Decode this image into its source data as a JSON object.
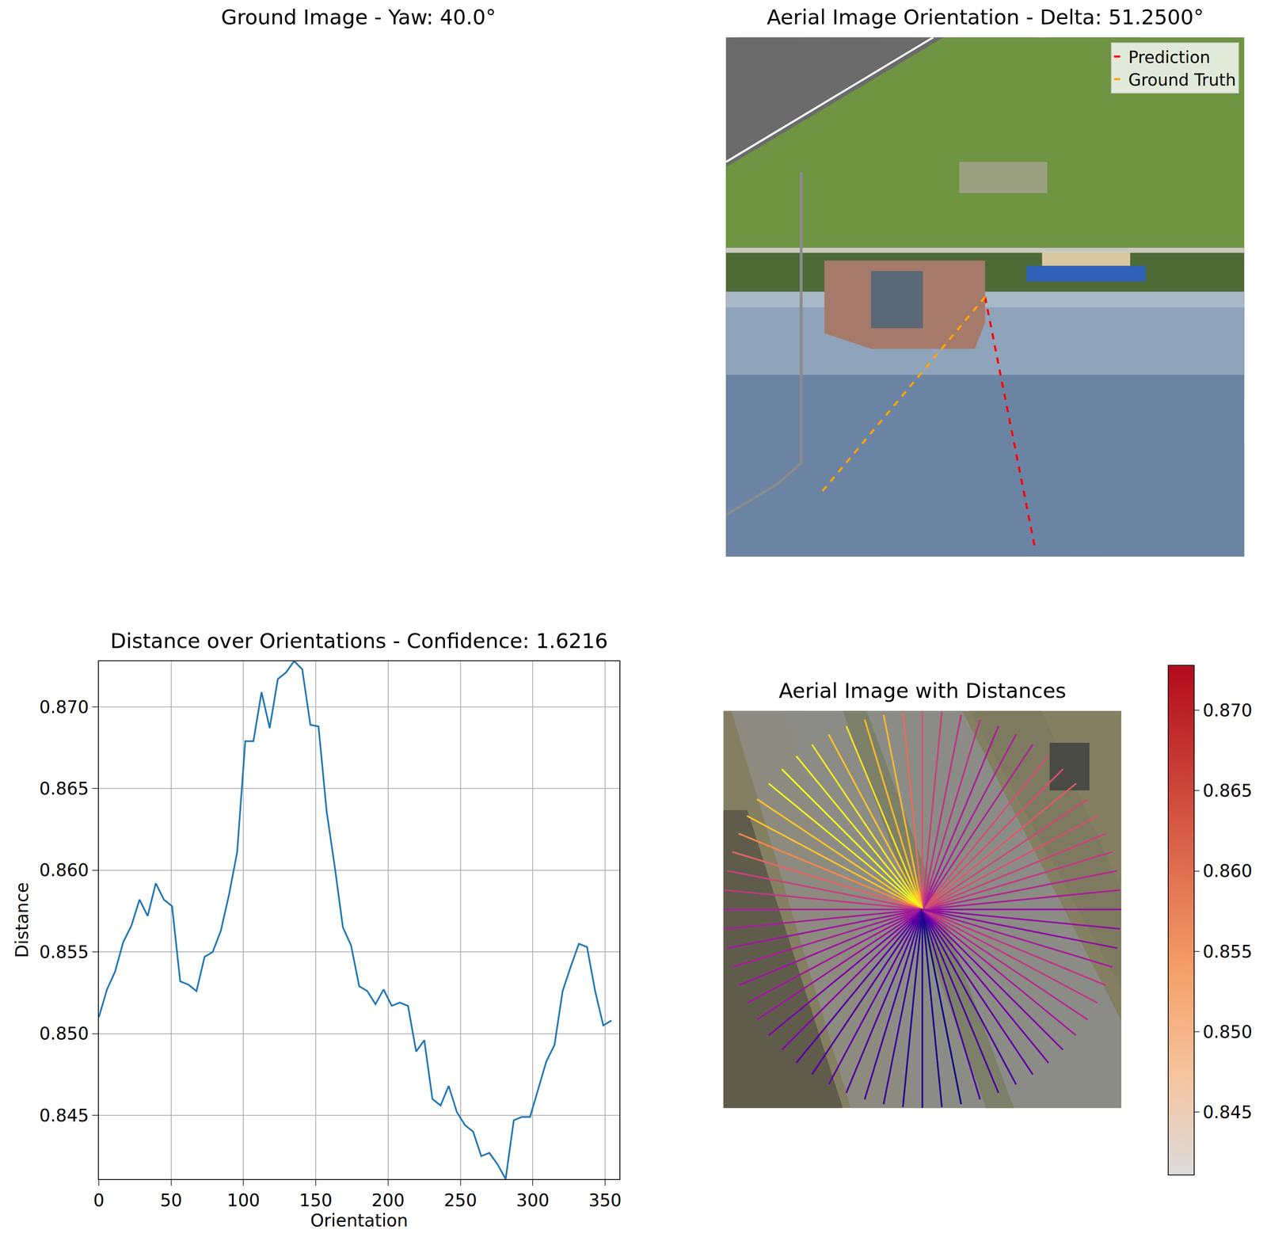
{
  "chart_data": [
    {
      "type": "image",
      "title": "Ground Image - Yaw: 40.0°",
      "tick_labels": false
    },
    {
      "type": "image",
      "title": "Aerial Image Orientation - Delta: 51.2500°",
      "tick_labels": false,
      "xlim": [
        0,
        1
      ],
      "ylim": [
        1,
        0
      ],
      "legend": "upper right",
      "series": [
        {
          "name": "Prediction",
          "color": "red",
          "line_style": "dashed",
          "orientation": 281.25
        },
        {
          "name": "Ground Truth",
          "color": "orange",
          "line_style": "dashed",
          "orientation": 230
        }
      ]
    },
    {
      "type": "line",
      "title": "Distance over Orientations - Confidence: 1.6216",
      "x_label": "Orientation",
      "y_label": "Distance",
      "color": "#1f77b4",
      "grid": true,
      "x": [
        0,
        5.625,
        11.25,
        16.875,
        22.5,
        28.125,
        33.75,
        39.375,
        45,
        50.625,
        56.25,
        61.875,
        67.5,
        73.125,
        78.75,
        84.375,
        90,
        95.625,
        101.25,
        106.875,
        112.5,
        118.125,
        123.75,
        129.375,
        135,
        140.625,
        146.25,
        151.875,
        157.5,
        163.125,
        168.75,
        174.375,
        180,
        185.625,
        191.25,
        196.875,
        202.5,
        208.125,
        213.75,
        219.375,
        225,
        230.625,
        236.25,
        241.875,
        247.5,
        253.125,
        258.75,
        264.375,
        270,
        275.625,
        281.25,
        286.875,
        292.5,
        298.125,
        303.75,
        309.375,
        315,
        320.625,
        326.25,
        331.875,
        337.5,
        343.125,
        348.75,
        354.375
      ],
      "values": [
        0.851,
        0.8527,
        0.8538,
        0.8556,
        0.8566,
        0.8582,
        0.8572,
        0.8592,
        0.8582,
        0.8578,
        0.8532,
        0.853,
        0.8526,
        0.8547,
        0.855,
        0.8563,
        0.8585,
        0.8611,
        0.8679,
        0.8679,
        0.8709,
        0.8687,
        0.8717,
        0.8721,
        0.8728,
        0.8723,
        0.8689,
        0.8688,
        0.8636,
        0.8602,
        0.8565,
        0.8554,
        0.8529,
        0.8526,
        0.8518,
        0.8527,
        0.8517,
        0.8519,
        0.8517,
        0.8489,
        0.8496,
        0.846,
        0.8456,
        0.8468,
        0.8452,
        0.8444,
        0.844,
        0.8425,
        0.8427,
        0.842,
        0.8411,
        0.8447,
        0.8449,
        0.8449,
        0.8466,
        0.8483,
        0.8493,
        0.8526,
        0.8541,
        0.8555,
        0.8553,
        0.8526,
        0.8505,
        0.8508
      ],
      "xlim": [
        0,
        360
      ],
      "ylim": [
        0.8411,
        0.8728
      ],
      "xticks": [
        0,
        50,
        100,
        150,
        200,
        250,
        300,
        350
      ],
      "yticks": [
        0.845,
        {
          "value": 0.85,
          "label": "0.850"
        },
        0.855,
        {
          "value": 0.86,
          "label": "0.860"
        },
        0.865,
        {
          "value": 0.87,
          "label": "0.870"
        }
      ]
    },
    {
      "type": "radial",
      "title": "Aerial Image with Distances",
      "tick_labels": false,
      "xlim": [
        0,
        1
      ],
      "ylim": [
        1,
        0
      ],
      "x": [
        0,
        5.625,
        11.25,
        16.875,
        22.5,
        28.125,
        33.75,
        39.375,
        45,
        50.625,
        56.25,
        61.875,
        67.5,
        73.125,
        78.75,
        84.375,
        90,
        95.625,
        101.25,
        106.875,
        112.5,
        118.125,
        123.75,
        129.375,
        135,
        140.625,
        146.25,
        151.875,
        157.5,
        163.125,
        168.75,
        174.375,
        180,
        185.625,
        191.25,
        196.875,
        202.5,
        208.125,
        213.75,
        219.375,
        225,
        230.625,
        236.25,
        241.875,
        247.5,
        253.125,
        258.75,
        264.375,
        270,
        275.625,
        281.25,
        286.875,
        292.5,
        298.125,
        303.75,
        309.375,
        315,
        320.625,
        326.25,
        331.875,
        337.5,
        343.125,
        348.75,
        354.375
      ],
      "values": [
        0.851,
        0.8527,
        0.8538,
        0.8556,
        0.8566,
        0.8582,
        0.8572,
        0.8592,
        0.8582,
        0.8578,
        0.8532,
        0.853,
        0.8526,
        0.8547,
        0.855,
        0.8563,
        0.8585,
        0.8611,
        0.8679,
        0.8679,
        0.8709,
        0.8687,
        0.8717,
        0.8721,
        0.8728,
        0.8723,
        0.8689,
        0.8688,
        0.8636,
        0.8602,
        0.8565,
        0.8554,
        0.8529,
        0.8526,
        0.8518,
        0.8527,
        0.8517,
        0.8519,
        0.8517,
        0.8489,
        0.8496,
        0.846,
        0.8456,
        0.8468,
        0.8452,
        0.8444,
        0.844,
        0.8425,
        0.8427,
        0.842,
        0.8411,
        0.8447,
        0.8449,
        0.8449,
        0.8466,
        0.8483,
        0.8493,
        0.8526,
        0.8541,
        0.8555,
        0.8553,
        0.8526,
        0.8505,
        0.8508
      ],
      "colorbar": {
        "range": [
          0.8411,
          0.8728
        ],
        "ticks": [
          0.845,
          {
            "value": 0.85,
            "label": "0.850"
          },
          0.855,
          {
            "value": 0.86,
            "label": "0.860"
          },
          0.865,
          {
            "value": 0.87,
            "label": "0.870"
          }
        ]
      }
    }
  ]
}
